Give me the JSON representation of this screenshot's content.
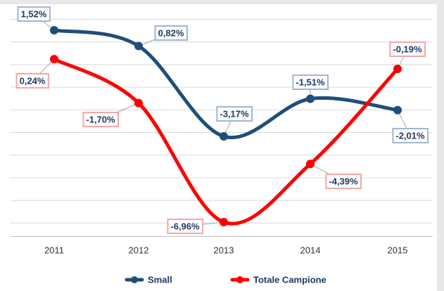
{
  "chart_data": {
    "type": "line",
    "categories": [
      "2011",
      "2012",
      "2013",
      "2014",
      "2015"
    ],
    "series": [
      {
        "name": "Small",
        "color": "#1f4e79",
        "values": [
          1.52,
          0.82,
          -3.17,
          -1.51,
          -2.01
        ],
        "value_labels": [
          "1,52%",
          "0,82%",
          "-3,17%",
          "-1,51%",
          "-2,01%"
        ]
      },
      {
        "name": "Totale Campione",
        "color": "#ff0000",
        "values": [
          0.24,
          -1.7,
          -6.96,
          -4.39,
          -0.19
        ],
        "value_labels": [
          "0,24%",
          "-1,70%",
          "-6,96%",
          "-4,39%",
          "-0,19%"
        ]
      }
    ],
    "ylim": [
      -7.5,
      2
    ],
    "yticks": [
      -7,
      -6,
      -5,
      -4,
      -3,
      -2,
      -1,
      0,
      1,
      2
    ],
    "grid": true,
    "legend": "bottom"
  }
}
